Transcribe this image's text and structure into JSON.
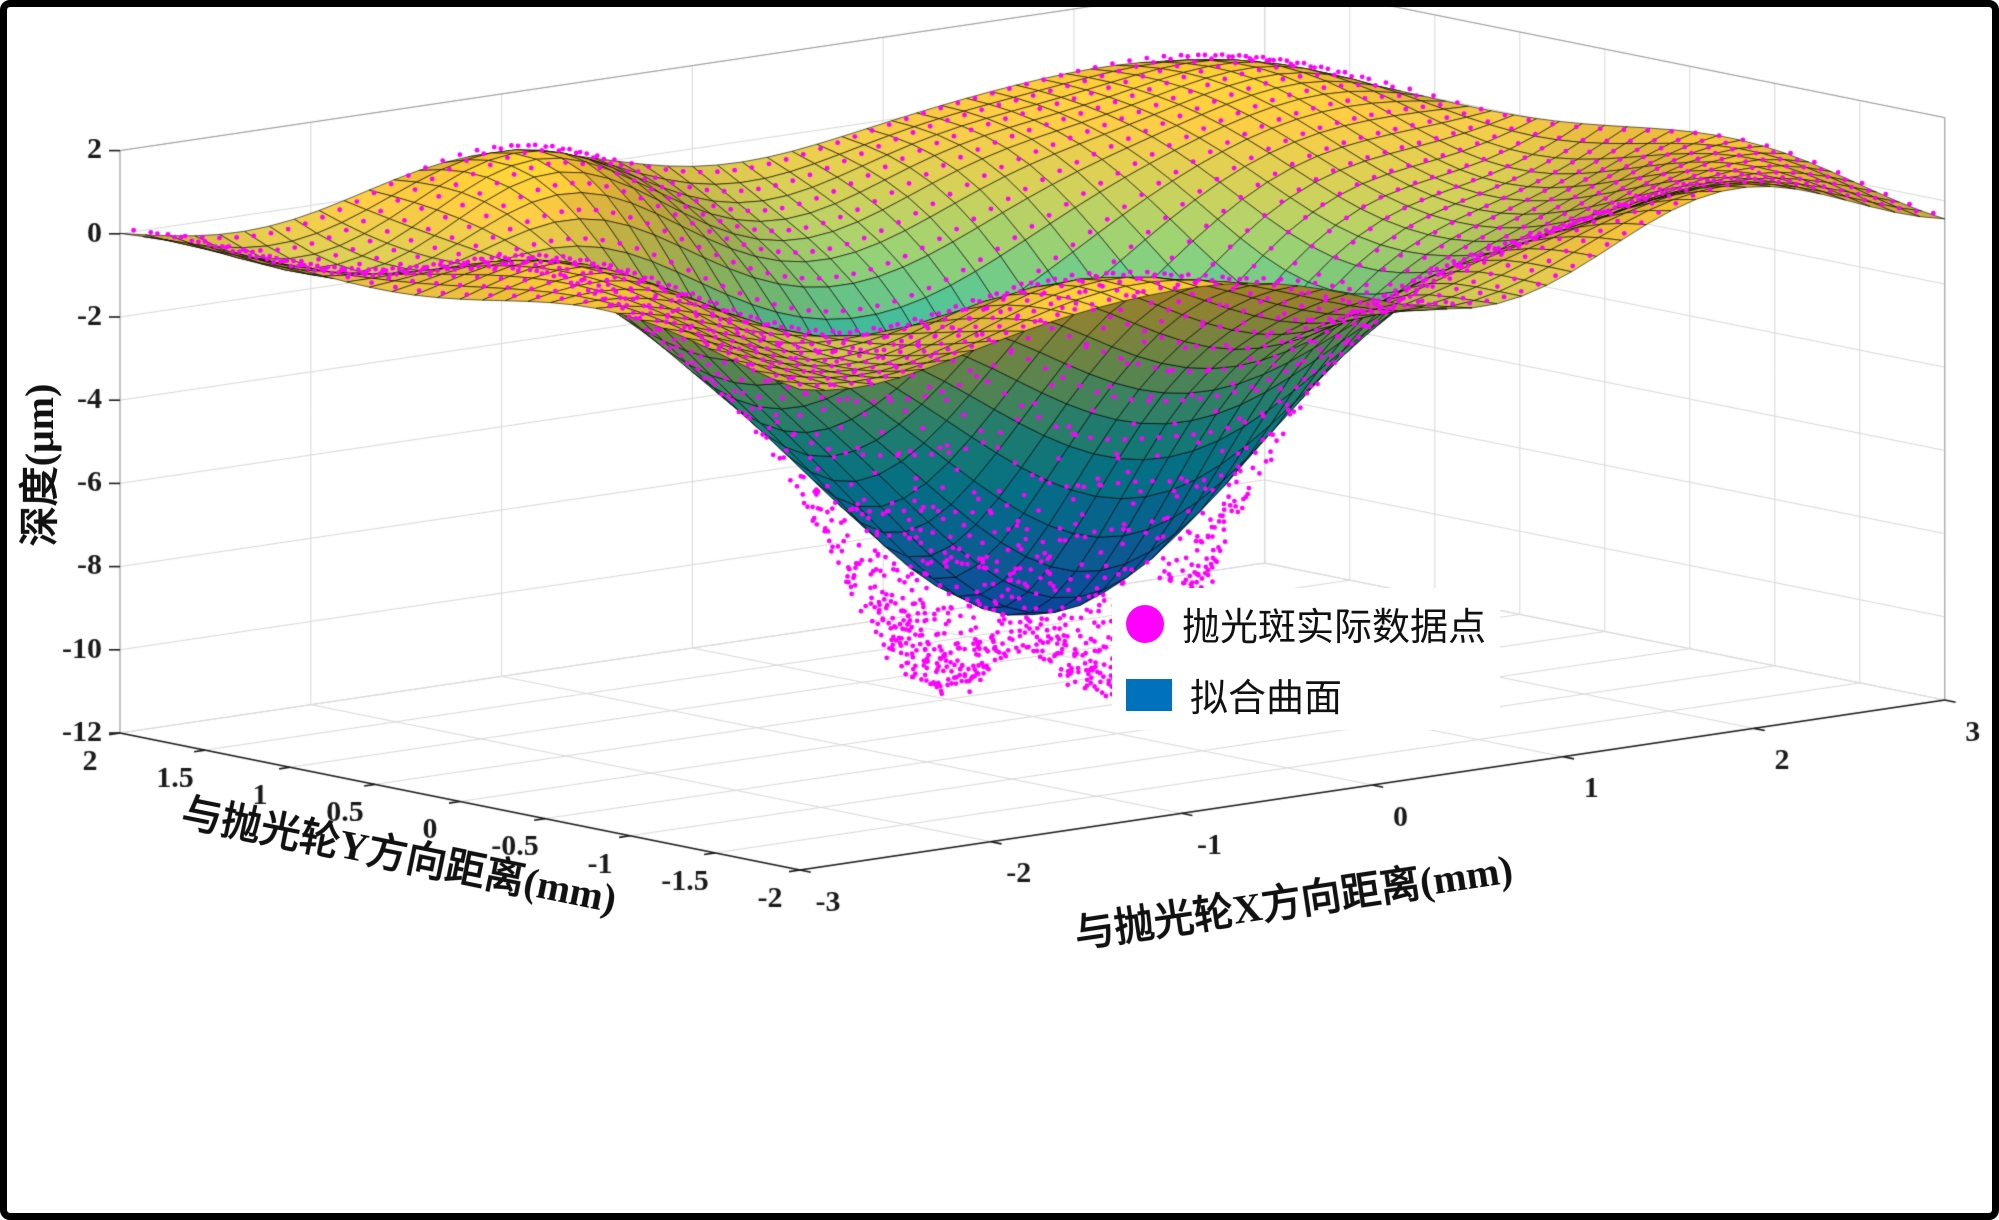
{
  "figure": {
    "background": "#ffffff",
    "border_color": "#000000"
  },
  "chart_data": {
    "type": "surface",
    "title": "",
    "xlabel": "与抛光轮X方向距离(mm)",
    "ylabel": "与抛光轮Y方向距离(mm)",
    "zlabel": "深度(μm)",
    "x_range": [
      -3,
      3
    ],
    "y_range": [
      -2,
      2
    ],
    "z_range": [
      -12,
      2
    ],
    "x_ticks": [
      -3,
      -2,
      -1,
      0,
      1,
      2,
      3
    ],
    "y_ticks": [
      2,
      1.5,
      1,
      0.5,
      0,
      -0.5,
      -1,
      -1.5,
      -2
    ],
    "z_ticks": [
      2,
      0,
      -2,
      -4,
      -6,
      -8,
      -10,
      -12
    ],
    "grid": true,
    "grid_color": "#d9d9d9",
    "axis_color": "#1a1a1a",
    "tick_font_px": 30,
    "legend": {
      "position": "lower-right-inside",
      "entries": [
        {
          "label": "抛光斑实际数据点",
          "marker": "circle",
          "color": "#ff00ff",
          "series": "scatter"
        },
        {
          "label": "拟合曲面",
          "marker": "square",
          "color": "#0072bd",
          "series": "surface"
        }
      ]
    },
    "colormap": "parula",
    "colormap_stops": [
      [
        0.0,
        "#352a87"
      ],
      [
        0.07,
        "#3a3cc1"
      ],
      [
        0.14,
        "#2154d8"
      ],
      [
        0.22,
        "#0f6bde"
      ],
      [
        0.3,
        "#1480d4"
      ],
      [
        0.38,
        "#0b8fc9"
      ],
      [
        0.46,
        "#07a0be"
      ],
      [
        0.54,
        "#23aea6"
      ],
      [
        0.62,
        "#53ba8b"
      ],
      [
        0.7,
        "#8cbe69"
      ],
      [
        0.78,
        "#bdbb50"
      ],
      [
        0.86,
        "#e4b83e"
      ],
      [
        0.93,
        "#fcc52c"
      ],
      [
        1.0,
        "#f6e614"
      ]
    ],
    "surface_model": {
      "description": "fitted polishing-spot surface (拟合曲面), Gaussian pit with rim ripples, depth in um",
      "base_level": 0.15,
      "pit_depth": -9.7,
      "pit_sigma_x": 1.42,
      "pit_sigma_y": 1.02,
      "min_depth_reached": -9.5,
      "ripple_amp": 0.8,
      "ripple_second_amp": 0.55,
      "ripple_mask_x": 3.4,
      "ripple_mask_y": 1.6,
      "ripple_freq": [
        2.1,
        1.9,
        3.2,
        2.4
      ],
      "ripple_phase": [
        0.6,
        0.3,
        2.1,
        1.2
      ],
      "grid_nx": 46,
      "grid_ny": 30,
      "edge_color": "#000000"
    },
    "scatter_model": {
      "description": "actual measured polishing-spot data points (抛光斑实际数据点); double well deeper than fit",
      "dot_color": "#ff00ff",
      "dot_radius": 2.4,
      "offset_above": 0.12,
      "well_depth": -2.9,
      "well_center_x": -0.1,
      "well_center_y": -0.1,
      "well_dx": 0.52,
      "well_sigma_x": 0.38,
      "well_sigma_y": 0.55,
      "min_depth_reached": -11.5,
      "grid_step_x": 0.09,
      "grid_step_y": 0.14,
      "noise_points": 650
    }
  }
}
